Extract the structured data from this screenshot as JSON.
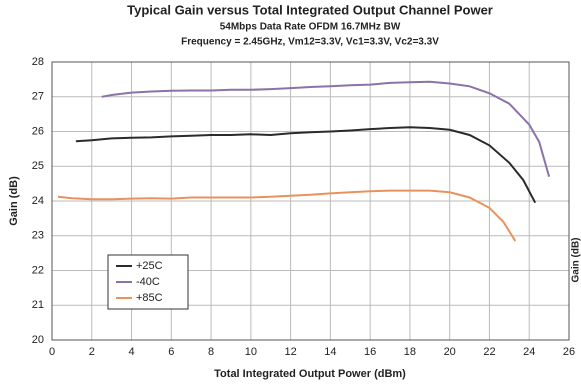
{
  "chart_data": {
    "type": "line",
    "title": "Typical Gain versus Total Integrated Output Channel Power",
    "subtitle": "54Mbps Data Rate OFDM 16.7MHz BW",
    "subtitle2": "Frequency = 2.45GHz, Vm12=3.3V, Vc1=3.3V, Vc2=3.3V",
    "xlabel": "Total Integrated Output Power (dBm)",
    "ylabel": "Gain (dB)",
    "y2label": "Gain (dB)",
    "xlim": [
      0,
      26
    ],
    "xticks": [
      0,
      2,
      4,
      6,
      8,
      10,
      12,
      14,
      16,
      18,
      20,
      22,
      24,
      26
    ],
    "ylim": [
      20,
      28
    ],
    "yticks": [
      20,
      21,
      22,
      23,
      24,
      25,
      26,
      27,
      28
    ],
    "grid": true,
    "legend": "lower left",
    "series": [
      {
        "name": "+25C",
        "color": "#2b2b2b",
        "x": [
          1.2,
          2,
          3,
          4,
          5,
          6,
          7,
          8,
          9,
          10,
          11,
          12,
          13,
          14,
          15,
          16,
          17,
          18,
          19,
          20,
          21,
          22,
          23,
          23.7,
          24.3
        ],
        "values": [
          25.72,
          25.75,
          25.8,
          25.82,
          25.83,
          25.86,
          25.88,
          25.9,
          25.9,
          25.92,
          25.9,
          25.95,
          25.98,
          26.0,
          26.03,
          26.07,
          26.1,
          26.12,
          26.1,
          26.05,
          25.9,
          25.6,
          25.1,
          24.6,
          23.95
        ]
      },
      {
        "name": "-40C",
        "color": "#8a73a8",
        "x": [
          2.5,
          3,
          4,
          5,
          6,
          7,
          8,
          9,
          10,
          11,
          12,
          13,
          14,
          15,
          16,
          17,
          18,
          19,
          20,
          21,
          22,
          23,
          24,
          24.5,
          25
        ],
        "values": [
          27.0,
          27.05,
          27.12,
          27.15,
          27.17,
          27.18,
          27.18,
          27.2,
          27.2,
          27.22,
          27.25,
          27.28,
          27.3,
          27.33,
          27.35,
          27.4,
          27.42,
          27.43,
          27.38,
          27.3,
          27.1,
          26.8,
          26.2,
          25.7,
          24.7
        ]
      },
      {
        "name": "+85C",
        "color": "#e8925c",
        "x": [
          0.3,
          1,
          2,
          3,
          4,
          5,
          6,
          7,
          8,
          9,
          10,
          11,
          12,
          13,
          14,
          15,
          16,
          17,
          18,
          19,
          20,
          21,
          22,
          22.7,
          23.3
        ],
        "values": [
          24.12,
          24.08,
          24.05,
          24.05,
          24.07,
          24.08,
          24.07,
          24.1,
          24.1,
          24.1,
          24.1,
          24.12,
          24.15,
          24.18,
          24.22,
          24.25,
          24.28,
          24.3,
          24.3,
          24.3,
          24.25,
          24.1,
          23.8,
          23.4,
          22.85
        ]
      }
    ]
  }
}
